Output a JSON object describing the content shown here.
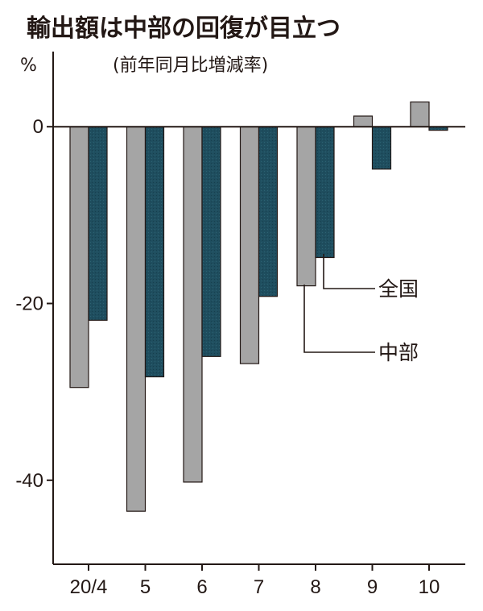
{
  "chart_data": {
    "type": "bar",
    "title": "輸出額は中部の回復が目立つ",
    "subtitle": "(前年同月比増減率)",
    "unit": "%",
    "categories": [
      "20/4",
      "5",
      "6",
      "7",
      "8",
      "9",
      "10"
    ],
    "series": [
      {
        "name": "中部",
        "values": [
          -29.5,
          -43.5,
          -40.2,
          -26.8,
          -18.0,
          1.2,
          2.8
        ],
        "color": "#a5a5a5"
      },
      {
        "name": "全国",
        "values": [
          -21.9,
          -28.3,
          -26.0,
          -19.2,
          -14.8,
          -4.8,
          -0.4
        ],
        "color": "#1f4e5f"
      }
    ],
    "ylim": [
      -49.5,
      8.5
    ],
    "yticks": [
      0,
      -20,
      -40
    ],
    "ytick_labels": [
      "0",
      "-20",
      "-40"
    ],
    "legend_placement": "inline-right",
    "grid": false
  }
}
